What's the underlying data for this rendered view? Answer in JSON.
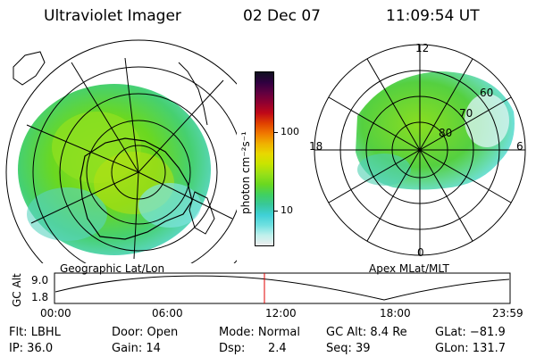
{
  "header": {
    "title": "Ultraviolet Imager",
    "date": "02 Dec 07",
    "time": "11:09:54 UT"
  },
  "colorbar": {
    "unit_label": "photon cm⁻²s⁻¹",
    "ticks": [
      "100",
      "10"
    ],
    "colors": [
      "#eeeeee",
      "#bff0ec",
      "#6fe0e0",
      "#3fd0d6",
      "#38c89a",
      "#40d060",
      "#6ad820",
      "#98e018",
      "#c8e400",
      "#e8d800",
      "#f0b000",
      "#f07800",
      "#e04000",
      "#c00818",
      "#900030",
      "#600040",
      "#300040",
      "#101020"
    ]
  },
  "left_plot": {
    "caption": "Geographic Lat/Lon"
  },
  "right_plot": {
    "caption": "Apex MLat/MLT",
    "mlt_labels": {
      "top": "12",
      "left": "18",
      "right": "6",
      "bottom": "0"
    },
    "lat_labels": [
      "60",
      "70",
      "80"
    ]
  },
  "altitude_strip": {
    "ylabel": "GC Alt",
    "yticks": [
      "9.0",
      "1.8"
    ],
    "xticks": [
      "00:00",
      "06:00",
      "12:00",
      "18:00",
      "23:59"
    ],
    "marker_color": "#e00000"
  },
  "info": {
    "flt": "Flt: LBHL",
    "door": "Door: Open",
    "mode": "Mode: Normal",
    "gcalt": "GC Alt: 8.4 Re",
    "glat": "GLat: −81.9",
    "ip": "IP: 36.0",
    "gain": "Gain: 14",
    "dsp_label": "Dsp:",
    "dsp_val": "2.4",
    "seq": "Seq: 39",
    "glon": "GLon: 131.7"
  }
}
